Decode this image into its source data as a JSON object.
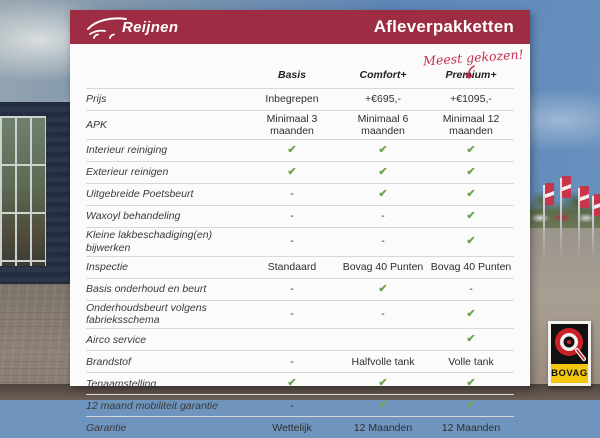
{
  "header": {
    "brand": "Reijnen",
    "title": "Afleverpakketten"
  },
  "annotation": {
    "text": "Meest gekozen!"
  },
  "table": {
    "columns": [
      "Basis",
      "Comfort+",
      "Premium+"
    ],
    "rows": [
      {
        "label": "Prijs",
        "values": [
          "Inbegrepen",
          "+€695,-",
          "+€1095,-"
        ]
      },
      {
        "label": "APK",
        "values": [
          "Minimaal 3 maanden",
          "Minimaal 6 maanden",
          "Minimaal 12 maanden"
        ]
      },
      {
        "label": "Interieur reiniging",
        "values": [
          "✓",
          "✓",
          "✓"
        ]
      },
      {
        "label": "Exterieur reinigen",
        "values": [
          "✓",
          "✓",
          "✓"
        ]
      },
      {
        "label": "Uitgebreide Poetsbeurt",
        "values": [
          "-",
          "✓",
          "✓"
        ]
      },
      {
        "label": "Waxoyl behandeling",
        "values": [
          "-",
          "-",
          "✓"
        ]
      },
      {
        "label": "Kleine lakbeschadiging(en) bijwerken",
        "values": [
          "-",
          "-",
          "✓"
        ]
      },
      {
        "label": "Inspectie",
        "values": [
          "Standaard",
          "Bovag 40 Punten",
          "Bovag 40 Punten"
        ]
      },
      {
        "label": "Basis onderhoud en beurt",
        "values": [
          "-",
          "✓",
          "-"
        ]
      },
      {
        "label": "Onderhoudsbeurt volgens fabrieksschema",
        "values": [
          "-",
          "-",
          "✓"
        ]
      },
      {
        "label": "Airco service",
        "values": [
          "",
          "",
          "✓"
        ]
      },
      {
        "label": "Brandstof",
        "values": [
          "-",
          "Halfvolle tank",
          "Volle tank"
        ]
      },
      {
        "label": "Tenaamstelling",
        "values": [
          "✓",
          "✓",
          "✓"
        ]
      },
      {
        "label": "12 maand mobiliteit garantie",
        "values": [
          "-",
          "✓",
          "✓"
        ]
      },
      {
        "label": "Garantie",
        "values": [
          "Wettelijk",
          "12 Maanden",
          "12 Maanden"
        ]
      }
    ]
  },
  "bovag": {
    "label": "BOVAG"
  },
  "colors": {
    "accent": "#9e2c42",
    "check_green": "#70a352",
    "annotation_red": "#c22f4d",
    "bovag_yellow": "#f2c50f",
    "bovag_red": "#cc2027"
  }
}
